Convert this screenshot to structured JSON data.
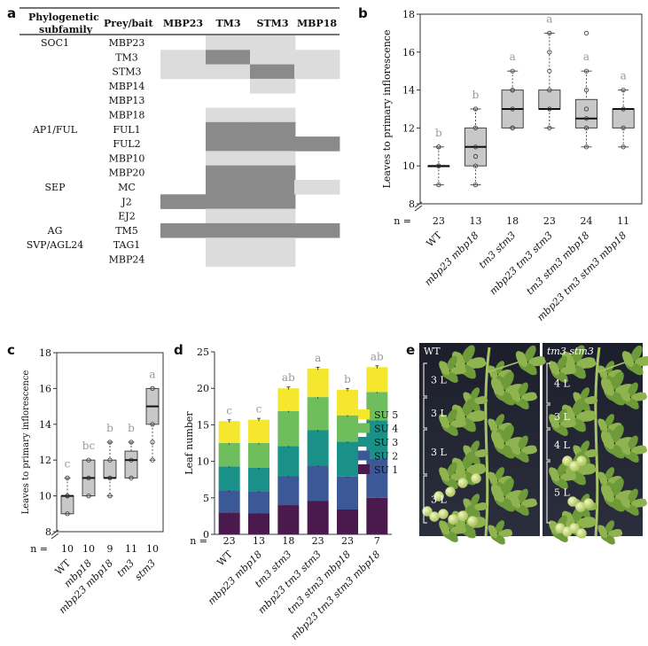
{
  "panel_a": {
    "label": "a",
    "header_col1_line1": "Phylogenetic",
    "header_col1_line2": "subfamily",
    "header_col2": "Prey/bait",
    "baits": [
      "MBP23",
      "TM3",
      "STM3",
      "MBP18"
    ],
    "subfamilies": [
      {
        "name": "SOC1",
        "row": 0
      },
      {
        "name": "AP1/FUL",
        "row": 6
      },
      {
        "name": "SEP",
        "row": 10
      },
      {
        "name": "AG",
        "row": 13
      },
      {
        "name": "SVP/AGL24",
        "row": 14
      }
    ],
    "preys": [
      "MBP23",
      "TM3",
      "STM3",
      "MBP14",
      "MBP13",
      "MBP18",
      "FUL1",
      "FUL2",
      "MBP10",
      "MBP20",
      "MC",
      "J2",
      "EJ2",
      "TM5",
      "TAG1",
      "MBP24"
    ],
    "cell_colors": {
      "0": "#ffffff",
      "1": "#dcdcdc",
      "2": "#8a8a8a"
    },
    "matrix": [
      [
        0,
        1,
        1,
        0
      ],
      [
        1,
        2,
        1,
        1
      ],
      [
        1,
        1,
        2,
        1
      ],
      [
        0,
        0,
        1,
        0
      ],
      [
        0,
        0,
        0,
        0
      ],
      [
        0,
        1,
        1,
        0
      ],
      [
        0,
        2,
        2,
        0
      ],
      [
        0,
        2,
        2,
        2
      ],
      [
        0,
        1,
        1,
        0
      ],
      [
        0,
        2,
        2,
        0
      ],
      [
        0,
        2,
        2,
        1
      ],
      [
        2,
        2,
        2,
        0
      ],
      [
        0,
        1,
        1,
        0
      ],
      [
        2,
        2,
        2,
        2
      ],
      [
        0,
        1,
        1,
        0
      ],
      [
        0,
        1,
        1,
        0
      ]
    ]
  },
  "panel_b": {
    "label": "b",
    "chart_data": {
      "type": "box",
      "ylabel": "Leaves to primary inflorescence",
      "ylim": [
        8,
        18
      ],
      "yticks": [
        8,
        10,
        12,
        14,
        16,
        18
      ],
      "n_prefix": "n =",
      "groups": [
        {
          "label": "WT",
          "n": "23",
          "letter": "b",
          "q1": 10,
          "median": 10,
          "q3": 10,
          "wlo": 9,
          "whi": 11,
          "points": [
            9,
            10,
            10,
            10,
            11,
            11
          ]
        },
        {
          "label": "mbp23 mbp18",
          "n": "13",
          "letter": "b",
          "q1": 10,
          "median": 11,
          "q3": 12,
          "wlo": 9,
          "whi": 13,
          "points": [
            9,
            10,
            10.5,
            11,
            12,
            13
          ]
        },
        {
          "label": "tm3 stm3",
          "n": "18",
          "letter": "a",
          "q1": 12,
          "median": 13,
          "q3": 14,
          "wlo": 12,
          "whi": 15,
          "points": [
            12,
            12,
            13,
            14,
            14,
            15
          ]
        },
        {
          "label": "mbp23 tm3 stm3",
          "n": "23",
          "letter": "a",
          "q1": 13,
          "median": 13,
          "q3": 14,
          "wlo": 12,
          "whi": 17,
          "points": [
            12,
            13,
            14,
            15,
            16,
            17
          ]
        },
        {
          "label": "tm3 stm3 mbp18",
          "n": "24",
          "letter": "a",
          "q1": 12,
          "median": 12.5,
          "q3": 13.5,
          "wlo": 11,
          "whi": 15,
          "points": [
            11,
            12,
            12.5,
            13,
            14,
            15,
            17
          ]
        },
        {
          "label": "mbp23 tm3 stm3 mbp18",
          "n": "11",
          "letter": "a",
          "q1": 12,
          "median": 13,
          "q3": 13,
          "wlo": 11,
          "whi": 14,
          "points": [
            11,
            12,
            13,
            14
          ]
        }
      ]
    }
  },
  "panel_c": {
    "label": "c",
    "chart_data": {
      "type": "box",
      "ylabel": "Leaves to primary inflorescence",
      "ylim": [
        8,
        18
      ],
      "yticks": [
        8,
        10,
        12,
        14,
        16,
        18
      ],
      "n_prefix": "n =",
      "groups": [
        {
          "label": "WT",
          "n": "10",
          "letter": "c",
          "q1": 9,
          "median": 10,
          "q3": 10,
          "wlo": 9,
          "whi": 11,
          "points": [
            9,
            10,
            10,
            11
          ]
        },
        {
          "label": "mbp18",
          "n": "10",
          "letter": "bc",
          "q1": 10,
          "median": 11,
          "q3": 12,
          "wlo": 10,
          "whi": 12,
          "points": [
            10,
            11,
            12
          ]
        },
        {
          "label": "mbp23 mbp18",
          "n": "9",
          "letter": "b",
          "q1": 11,
          "median": 11,
          "q3": 12,
          "wlo": 10,
          "whi": 13,
          "points": [
            10,
            11,
            12,
            13
          ]
        },
        {
          "label": "tm3",
          "n": "11",
          "letter": "b",
          "q1": 11,
          "median": 12,
          "q3": 12.5,
          "wlo": 11,
          "whi": 13,
          "points": [
            11,
            12,
            13
          ]
        },
        {
          "label": "stm3",
          "n": "10",
          "letter": "a",
          "q1": 14,
          "median": 15,
          "q3": 16,
          "wlo": 12,
          "whi": 16,
          "points": [
            12,
            13,
            14,
            16
          ]
        }
      ]
    }
  },
  "panel_d": {
    "label": "d",
    "chart_data": {
      "type": "bar",
      "stacked": true,
      "ylabel": "Leaf number",
      "ylim": [
        0,
        25
      ],
      "yticks": [
        0,
        5,
        10,
        15,
        20,
        25
      ],
      "n_prefix": "n =",
      "categories": [
        "WT",
        "mbp23 mbp18",
        "tm3 stm3",
        "mbp23 tm3 stm3",
        "tm3 stm3 mbp18",
        "mbp23 tm3 stm3 mbp18"
      ],
      "n": [
        "23",
        "13",
        "18",
        "23",
        "23",
        "7"
      ],
      "letters": [
        "c",
        "c",
        "ab",
        "a",
        "b",
        "ab"
      ],
      "series": [
        {
          "name": "SU 1",
          "color": "#4a1a4f",
          "values": [
            3.0,
            2.9,
            4.0,
            4.6,
            3.4,
            5.0
          ]
        },
        {
          "name": "SU 2",
          "color": "#3b5897",
          "values": [
            3.0,
            3.0,
            4.0,
            4.8,
            4.5,
            5.4
          ]
        },
        {
          "name": "SU 3",
          "color": "#1a9188",
          "values": [
            3.3,
            3.2,
            4.1,
            4.9,
            4.8,
            5.2
          ]
        },
        {
          "name": "SU 4",
          "color": "#6ebe5e",
          "values": [
            3.2,
            3.4,
            4.8,
            4.5,
            3.6,
            3.9
          ]
        },
        {
          "name": "SU 5",
          "color": "#f5e62e",
          "values": [
            3.0,
            3.2,
            3.1,
            3.9,
            3.5,
            3.4
          ]
        }
      ]
    }
  },
  "panel_e": {
    "label": "e",
    "left_title": "WT",
    "right_title": "tm3 stm3",
    "left_brackets": [
      "3 L",
      "3 L",
      "3 L",
      "3 L"
    ],
    "right_brackets": [
      "4 L",
      "3 L",
      "4 L",
      "5 L"
    ]
  }
}
